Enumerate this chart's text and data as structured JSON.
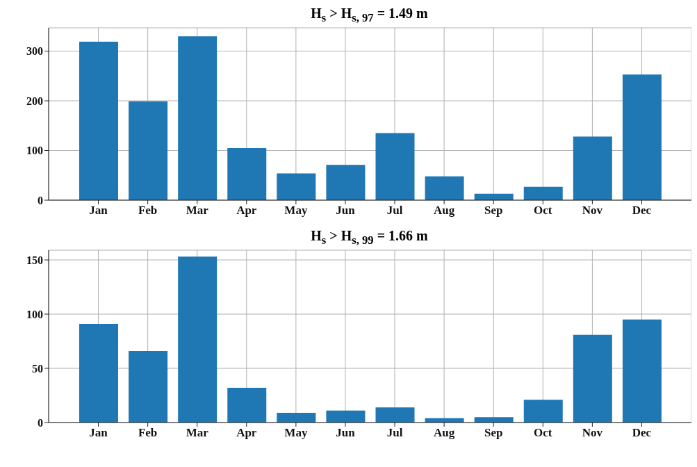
{
  "chart_data": [
    {
      "type": "bar",
      "title": "H$_{s}$ > H$_{s, 97}$ = 1.49 m",
      "categories": [
        "Jan",
        "Feb",
        "Mar",
        "Apr",
        "May",
        "Jun",
        "Jul",
        "Aug",
        "Sep",
        "Oct",
        "Nov",
        "Dec"
      ],
      "values": [
        319,
        199,
        330,
        105,
        54,
        71,
        135,
        48,
        13,
        27,
        128,
        253
      ],
      "color": "#1f77b4",
      "ylim": [
        0,
        347
      ],
      "yticks": [
        0,
        100,
        200,
        300
      ],
      "grid": true
    },
    {
      "type": "bar",
      "title": "H$_{s}$ > H$_{s, 99}$ = 1.66 m",
      "categories": [
        "Jan",
        "Feb",
        "Mar",
        "Apr",
        "May",
        "Jun",
        "Jul",
        "Aug",
        "Sep",
        "Oct",
        "Nov",
        "Dec"
      ],
      "values": [
        91,
        66,
        153,
        32,
        9,
        11,
        14,
        4,
        5,
        21,
        81,
        95
      ],
      "color": "#1f77b4",
      "ylim": [
        0,
        159
      ],
      "yticks": [
        0,
        50,
        100,
        150
      ],
      "grid": true
    }
  ]
}
